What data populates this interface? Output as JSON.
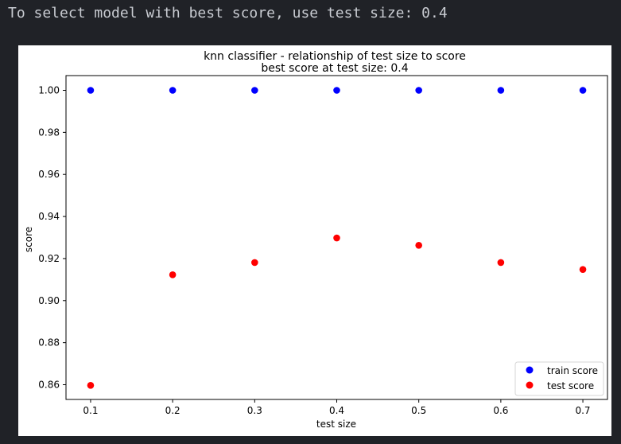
{
  "output": {
    "text": "To select model with best score, use test size: 0.4"
  },
  "colors": {
    "background": "#202227",
    "train": "#0000ff",
    "test": "#ff0000"
  },
  "chart_data": {
    "type": "scatter",
    "title": "knn classifier - relationship of test size to score",
    "subtitle": "best score at test size: 0.4",
    "xlabel": "test size",
    "ylabel": "score",
    "x": [
      0.1,
      0.2,
      0.3,
      0.4,
      0.5,
      0.6,
      0.7
    ],
    "xticks": [
      "0.1",
      "0.2",
      "0.3",
      "0.4",
      "0.5",
      "0.6",
      "0.7"
    ],
    "yticks": [
      "0.86",
      "0.88",
      "0.90",
      "0.92",
      "0.94",
      "0.96",
      "0.98",
      "1.00"
    ],
    "xlim": [
      0.07,
      0.73
    ],
    "ylim": [
      0.853,
      1.007
    ],
    "grid": false,
    "legend_position": "bottom-right",
    "series": [
      {
        "name": "train score",
        "color": "#0000ff",
        "values": [
          1.0,
          1.0,
          1.0,
          1.0,
          1.0,
          1.0,
          1.0
        ]
      },
      {
        "name": "test score",
        "color": "#ff0000",
        "values": [
          0.8597,
          0.9123,
          0.9181,
          0.9298,
          0.9263,
          0.9181,
          0.9148
        ]
      }
    ]
  }
}
